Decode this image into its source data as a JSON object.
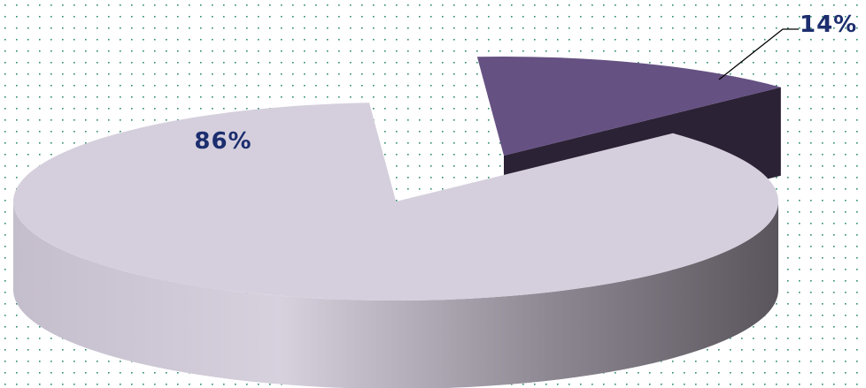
{
  "chart_data": {
    "type": "pie",
    "subtype": "3d-exploded",
    "title": "",
    "slices": [
      {
        "label": "86%",
        "value": 86,
        "color": "#d5cfdd",
        "side_color": "#9d97a4",
        "exploded": false
      },
      {
        "label": "14%",
        "value": 14,
        "color": "#665183",
        "side_color": "#2b2236",
        "exploded": true
      }
    ],
    "label_color": "#1c2e6e",
    "background": {
      "color": "#ffffff",
      "dot_color": "#2e8b6e"
    }
  }
}
